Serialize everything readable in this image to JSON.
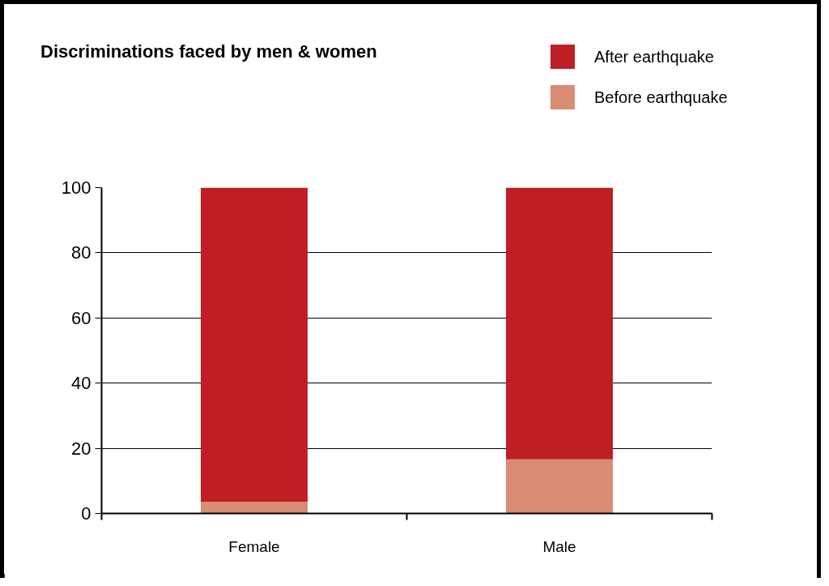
{
  "chart_data": {
    "type": "bar",
    "title": "Discriminations faced by men & women",
    "categories": [
      "Female",
      "Male"
    ],
    "stacked": true,
    "series": [
      {
        "name": "Before earthquake",
        "color": "#d98b73",
        "values": [
          3.6,
          16.6
        ]
      },
      {
        "name": "After earthquake",
        "color": "#be1e24",
        "values": [
          96.4,
          83.4
        ]
      }
    ],
    "ylim": [
      0,
      100
    ],
    "yticks": [
      0,
      20,
      40,
      60,
      80,
      100
    ],
    "grid": "y",
    "legend": "top right"
  }
}
